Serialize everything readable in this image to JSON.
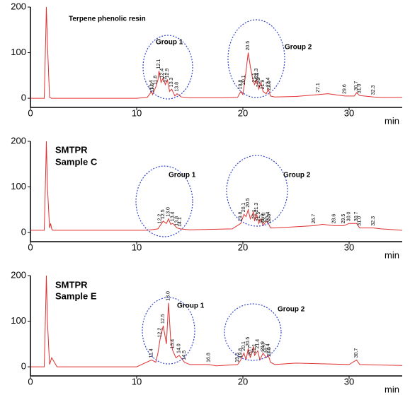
{
  "chart_data": [
    {
      "type": "line",
      "title": [
        "Terpene phenolic resin"
      ],
      "xlabel": "min",
      "x": [
        0,
        1.3,
        1.45,
        1.5,
        1.6,
        1.8,
        2,
        5,
        10,
        11,
        11.4,
        11.5,
        11.8,
        12,
        12.1,
        12.3,
        12.5,
        12.7,
        12.9,
        13.1,
        13.3,
        13.6,
        13.8,
        14.2,
        15,
        18,
        19.5,
        19.8,
        20,
        20.1,
        20.3,
        20.5,
        20.7,
        20.9,
        21.1,
        21.3,
        21.5,
        21.7,
        21.9,
        22.2,
        22.4,
        22.6,
        23,
        25,
        27.1,
        28,
        29.6,
        30.5,
        30.7,
        31,
        32.3,
        33,
        35
      ],
      "values": [
        0,
        0,
        150,
        200,
        120,
        2,
        0,
        0,
        0,
        2,
        15,
        8,
        25,
        40,
        60,
        35,
        45,
        30,
        40,
        15,
        20,
        5,
        10,
        3,
        1,
        1,
        2,
        15,
        8,
        25,
        60,
        100,
        70,
        45,
        30,
        40,
        20,
        35,
        15,
        10,
        20,
        5,
        3,
        4,
        8,
        10,
        5,
        5,
        12,
        6,
        3,
        2,
        2
      ],
      "color": "#e03030",
      "peak_labels": [
        11.4,
        11.5,
        11.8,
        12.1,
        12.4,
        12.7,
        12.9,
        13.3,
        13.8,
        19.8,
        20.1,
        20.5,
        21.1,
        21.3,
        21.4,
        21.5,
        21.9,
        22.4,
        22.5,
        27.1,
        29.6,
        30.7,
        {
          "value": 31,
          "label": "31.0"
        },
        32.3
      ],
      "groups": [
        "Group 1",
        "Group 2"
      ],
      "xlim": [
        0,
        35
      ],
      "xticks": [
        0,
        10,
        20,
        30
      ],
      "ylim": [
        -20,
        200
      ],
      "yticks": [
        0,
        100,
        200
      ]
    },
    {
      "type": "line",
      "title": [
        "SMTPR",
        "Sample C"
      ],
      "xlabel": "min",
      "x": [
        0,
        1.3,
        1.45,
        1.5,
        1.6,
        1.8,
        1.9,
        2,
        2.1,
        2.5,
        5,
        11,
        12,
        12.2,
        12.5,
        12.8,
        13,
        13.2,
        13.4,
        13.8,
        14.1,
        15,
        19,
        19.8,
        20.1,
        20.3,
        20.5,
        20.7,
        21,
        21.1,
        21.3,
        21.5,
        21.7,
        21.9,
        22.2,
        22.4,
        22.6,
        23,
        26.7,
        27.5,
        28.6,
        29.5,
        30,
        30.7,
        31,
        32.3,
        33,
        35
      ],
      "values": [
        5,
        5,
        150,
        200,
        100,
        10,
        20,
        8,
        5,
        5,
        5,
        5,
        8,
        15,
        25,
        20,
        30,
        18,
        20,
        10,
        8,
        6,
        8,
        20,
        40,
        35,
        50,
        30,
        45,
        25,
        40,
        20,
        30,
        15,
        25,
        20,
        10,
        10,
        15,
        18,
        15,
        15,
        20,
        20,
        10,
        10,
        8,
        5
      ],
      "color": "#e03030",
      "peak_labels": [
        12.2,
        12.5,
        {
          "value": 13,
          "label": "13.0"
        },
        13.4,
        13.8,
        14.1,
        19.8,
        20.1,
        20.5,
        21.1,
        21.3,
        21.5,
        21.9,
        {
          "value": 22,
          "label": "22.0"
        },
        22.4,
        22.5,
        26.7,
        28.6,
        29.5,
        {
          "value": 30,
          "label": "30.0"
        },
        30.7,
        {
          "value": 31,
          "label": "31.0"
        },
        32.3
      ],
      "groups": [
        "Group 1",
        "Group 2"
      ],
      "xlim": [
        0,
        35
      ],
      "xticks": [
        0,
        10,
        20,
        30
      ],
      "ylim": [
        -20,
        200
      ],
      "yticks": [
        0,
        100,
        200
      ]
    },
    {
      "type": "line",
      "title": [
        "SMTPR",
        "Sample E"
      ],
      "xlabel": "min",
      "x": [
        0,
        1.3,
        1.45,
        1.5,
        1.6,
        1.8,
        2,
        2.5,
        5,
        10,
        11.4,
        11.8,
        12,
        12.2,
        12.5,
        12.8,
        13,
        13.2,
        13.4,
        13.7,
        14,
        14.5,
        15,
        16.8,
        17.5,
        19.5,
        19.8,
        20.1,
        20.3,
        20.5,
        20.7,
        21,
        21.1,
        21.4,
        21.6,
        21.9,
        22.2,
        22.4,
        22.6,
        23,
        25,
        30,
        30.7,
        31,
        35
      ],
      "values": [
        0,
        0,
        150,
        200,
        100,
        5,
        20,
        0,
        0,
        0,
        15,
        10,
        30,
        60,
        90,
        50,
        140,
        60,
        35,
        20,
        25,
        10,
        5,
        5,
        2,
        5,
        15,
        30,
        15,
        40,
        20,
        45,
        25,
        35,
        15,
        30,
        20,
        25,
        10,
        5,
        8,
        5,
        15,
        5,
        3
      ],
      "color": "#e03030",
      "peak_labels": [
        11.4,
        12.2,
        12.5,
        {
          "value": 13,
          "label": "13.0"
        },
        13.4,
        {
          "value": 14,
          "label": "14.0"
        },
        14.5,
        16.8,
        19.5,
        19.8,
        20.1,
        20.5,
        20.7,
        21.1,
        21.4,
        21.9,
        {
          "value": 22,
          "label": "22.0"
        },
        22.4,
        22.5,
        30.7
      ],
      "groups": [
        "Group 1",
        "Group 2"
      ],
      "xlim": [
        0,
        35
      ],
      "xticks": [
        0,
        10,
        20,
        30
      ],
      "ylim": [
        -20,
        200
      ],
      "yticks": [
        0,
        100,
        200
      ]
    }
  ]
}
